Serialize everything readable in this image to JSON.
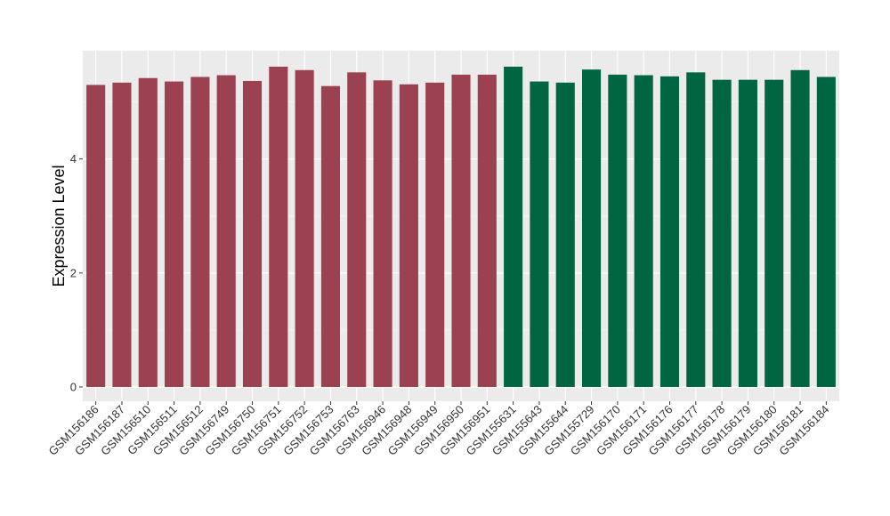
{
  "chart_data": {
    "type": "bar",
    "title": "",
    "xlabel": "",
    "ylabel": "Expression Level",
    "ylim": [
      -0.25,
      5.9
    ],
    "yticks": [
      0,
      2,
      4
    ],
    "grid": true,
    "legend": "none",
    "background": "#EBEBEB",
    "categories": [
      "GSM156186",
      "GSM156187",
      "GSM156510",
      "GSM156511",
      "GSM156512",
      "GSM156749",
      "GSM156750",
      "GSM156751",
      "GSM156752",
      "GSM156753",
      "GSM156763",
      "GSM156946",
      "GSM156948",
      "GSM156949",
      "GSM156950",
      "GSM156951",
      "GSM155631",
      "GSM155643",
      "GSM155644",
      "GSM155729",
      "GSM156170",
      "GSM156171",
      "GSM156176",
      "GSM156177",
      "GSM156178",
      "GSM156179",
      "GSM156180",
      "GSM156181",
      "GSM156184"
    ],
    "values": [
      5.3,
      5.34,
      5.42,
      5.36,
      5.44,
      5.47,
      5.37,
      5.62,
      5.56,
      5.28,
      5.52,
      5.38,
      5.31,
      5.34,
      5.48,
      5.48,
      5.62,
      5.36,
      5.34,
      5.57,
      5.48,
      5.47,
      5.45,
      5.52,
      5.39,
      5.39,
      5.39,
      5.56,
      5.44
    ],
    "colors": [
      "#9B4150",
      "#9B4150",
      "#9B4150",
      "#9B4150",
      "#9B4150",
      "#9B4150",
      "#9B4150",
      "#9B4150",
      "#9B4150",
      "#9B4150",
      "#9B4150",
      "#9B4150",
      "#9B4150",
      "#9B4150",
      "#9B4150",
      "#9B4150",
      "#006642",
      "#006642",
      "#006642",
      "#006642",
      "#006642",
      "#006642",
      "#006642",
      "#006642",
      "#006642",
      "#006642",
      "#006642",
      "#006642",
      "#006642"
    ]
  }
}
